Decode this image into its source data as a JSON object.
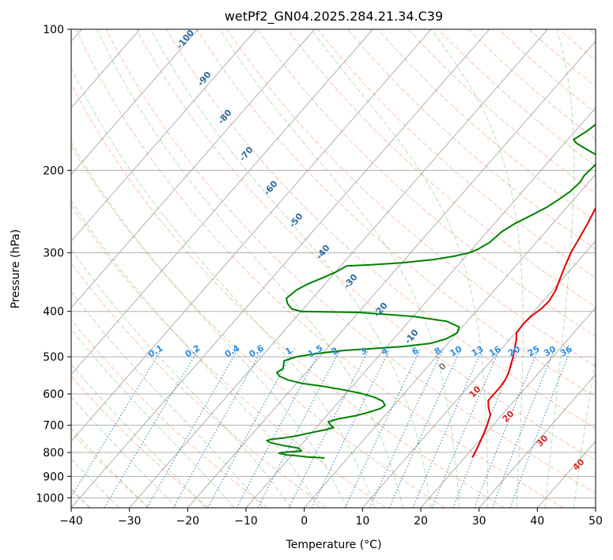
{
  "chart_data": {
    "type": "line",
    "title": "wetPf2_GN04.2025.284.21.34.C39",
    "xlabel": "Temperature (°C)",
    "ylabel": "Pressure (hPa)",
    "xlim": [
      -40,
      50
    ],
    "ylim": [
      1050,
      100
    ],
    "y_scale": "log",
    "grid": true,
    "x_ticks": [
      -40,
      -30,
      -20,
      -10,
      0,
      10,
      20,
      30,
      40,
      50
    ],
    "y_ticks": [
      1000,
      900,
      800,
      700,
      600,
      500,
      400,
      300,
      200,
      100
    ],
    "series": [
      {
        "color": "#e00000",
        "points": [
          [
            21.3,
            820
          ],
          [
            21.0,
            800
          ],
          [
            20.5,
            770
          ],
          [
            20.0,
            745
          ],
          [
            19.5,
            720
          ],
          [
            19.0,
            700
          ],
          [
            18.0,
            665
          ],
          [
            16.5,
            640
          ],
          [
            15.5,
            620
          ],
          [
            15.5,
            600
          ],
          [
            15.5,
            580
          ],
          [
            15.3,
            560
          ],
          [
            14.8,
            540
          ],
          [
            14.0,
            520
          ],
          [
            13.2,
            500
          ],
          [
            12.2,
            480
          ],
          [
            11.2,
            460
          ],
          [
            10.2,
            445
          ],
          [
            10.0,
            425
          ],
          [
            10.2,
            410
          ],
          [
            10.8,
            395
          ],
          [
            11.0,
            380
          ],
          [
            10.5,
            360
          ],
          [
            9.5,
            340
          ],
          [
            8.5,
            320
          ],
          [
            7.5,
            300
          ],
          [
            6.8,
            280
          ],
          [
            6.0,
            260
          ],
          [
            5.0,
            240
          ],
          [
            3.5,
            225
          ],
          [
            2.0,
            212
          ],
          [
            1.0,
            205
          ],
          [
            0.0,
            195
          ],
          [
            0.5,
            187
          ],
          [
            1.5,
            182
          ],
          [
            2.5,
            178
          ],
          [
            3.0,
            174
          ],
          [
            3.7,
            165
          ],
          [
            4.0,
            160
          ],
          [
            4.5,
            154
          ],
          [
            5.0,
            146
          ],
          [
            5.8,
            140
          ],
          [
            6.5,
            135
          ],
          [
            7.8,
            130
          ],
          [
            9.2,
            125
          ],
          [
            10.0,
            120
          ],
          [
            10.5,
            117
          ],
          [
            11.0,
            113
          ],
          [
            11.5,
            110
          ],
          [
            11.8,
            106
          ],
          [
            12.5,
            103
          ],
          [
            13.0,
            100
          ]
        ]
      },
      {
        "color": "#008000",
        "points": [
          [
            -4.0,
            822
          ],
          [
            -7.0,
            818
          ],
          [
            -9.5,
            812
          ],
          [
            -11.0,
            810
          ],
          [
            -12.5,
            803
          ],
          [
            -12.0,
            800
          ],
          [
            -9.0,
            794
          ],
          [
            -10.0,
            783
          ],
          [
            -13.0,
            773
          ],
          [
            -15.5,
            763
          ],
          [
            -16.5,
            755
          ],
          [
            -16.0,
            750
          ],
          [
            -14.0,
            745
          ],
          [
            -12.0,
            737
          ],
          [
            -10.5,
            728
          ],
          [
            -8.0,
            715
          ],
          [
            -7.0,
            708
          ],
          [
            -8.0,
            698
          ],
          [
            -8.8,
            688
          ],
          [
            -7.5,
            678
          ],
          [
            -5.0,
            668
          ],
          [
            -3.5,
            658
          ],
          [
            -1.8,
            645
          ],
          [
            -1.5,
            635
          ],
          [
            -2.5,
            622
          ],
          [
            -4.5,
            610
          ],
          [
            -7.5,
            598
          ],
          [
            -11.0,
            588
          ],
          [
            -15.0,
            578
          ],
          [
            -19.0,
            570
          ],
          [
            -22.0,
            560
          ],
          [
            -24.0,
            550
          ],
          [
            -25.0,
            540
          ],
          [
            -24.5,
            530
          ],
          [
            -25.0,
            520
          ],
          [
            -25.5,
            510
          ],
          [
            -24.0,
            500
          ],
          [
            -21.0,
            492
          ],
          [
            -17.0,
            485
          ],
          [
            -12.0,
            480
          ],
          [
            -7.0,
            475
          ],
          [
            -3.0,
            468
          ],
          [
            -1.0,
            458
          ],
          [
            0.0,
            445
          ],
          [
            -0.5,
            432
          ],
          [
            -3.5,
            420
          ],
          [
            -10.0,
            410
          ],
          [
            -20.0,
            402
          ],
          [
            -30.0,
            400
          ],
          [
            -32.0,
            395
          ],
          [
            -33.5,
            385
          ],
          [
            -34.5,
            375
          ],
          [
            -34.0,
            360
          ],
          [
            -33.0,
            350
          ],
          [
            -31.5,
            340
          ],
          [
            -30.0,
            330
          ],
          [
            -29.0,
            320
          ],
          [
            -25.0,
            318
          ],
          [
            -20.0,
            315
          ],
          [
            -15.0,
            310
          ],
          [
            -12.0,
            305
          ],
          [
            -10.0,
            300
          ],
          [
            -9.0,
            295
          ],
          [
            -8.0,
            285
          ],
          [
            -7.5,
            270
          ],
          [
            -6.5,
            260
          ],
          [
            -5.0,
            250
          ],
          [
            -3.5,
            240
          ],
          [
            -2.5,
            230
          ],
          [
            -1.8,
            222
          ],
          [
            -1.5,
            212
          ],
          [
            -1.8,
            205
          ],
          [
            -1.5,
            195
          ],
          [
            -1.5,
            190
          ],
          [
            -2.5,
            186
          ],
          [
            -4.5,
            182
          ],
          [
            -6.5,
            178
          ],
          [
            -8.0,
            175
          ],
          [
            -9.0,
            172
          ],
          [
            -8.0,
            165
          ],
          [
            -7.0,
            155
          ],
          [
            -6.0,
            148
          ],
          [
            -5.0,
            140
          ],
          [
            -4.0,
            134
          ],
          [
            -3.0,
            130
          ],
          [
            -1.5,
            123
          ],
          [
            -0.5,
            117
          ],
          [
            0.5,
            110
          ],
          [
            1.5,
            105
          ],
          [
            2.2,
            100
          ]
        ]
      }
    ],
    "dry_adiabat_labels": [
      "-100",
      "-90",
      "-80",
      "-70",
      "-60",
      "-50",
      "-40",
      "-30",
      "-20",
      "-10"
    ],
    "moist_adiabat_labels": [
      "0",
      "10",
      "20",
      "30",
      "40"
    ],
    "mixing_ratio_labels": [
      "0.1",
      "0.2",
      "0.4",
      "0.6",
      "1",
      "1.5",
      "2",
      "3",
      "4",
      "6",
      "8",
      "10",
      "13",
      "16",
      "20",
      "25",
      "30",
      "36"
    ]
  }
}
